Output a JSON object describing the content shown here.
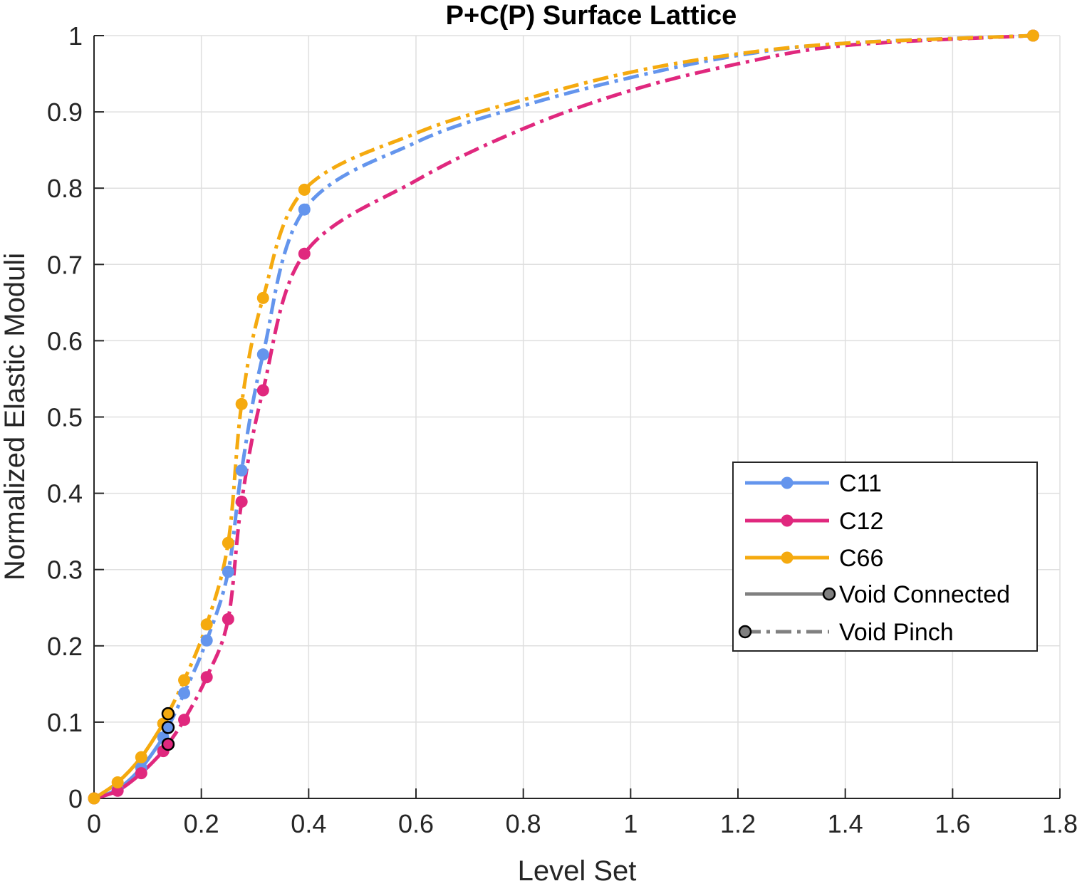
{
  "chart_data": {
    "type": "line",
    "title": "P+C(P) Surface Lattice",
    "xlabel": "Level Set",
    "ylabel": "Normalized Elastic Moduli",
    "xlim": [
      0,
      1.8
    ],
    "ylim": [
      0,
      1
    ],
    "x_ticks": [
      "0",
      "0.2",
      "0.4",
      "0.6",
      "0.8",
      "1",
      "1.2",
      "1.4",
      "1.6",
      "1.8"
    ],
    "y_ticks": [
      "0",
      "0.1",
      "0.2",
      "0.3",
      "0.4",
      "0.5",
      "0.6",
      "0.7",
      "0.8",
      "0.9",
      "1"
    ],
    "x_tick_values": [
      0,
      0.2,
      0.4,
      0.6,
      0.8,
      1.0,
      1.2,
      1.4,
      1.6,
      1.8
    ],
    "y_tick_values": [
      0,
      0.1,
      0.2,
      0.3,
      0.4,
      0.5,
      0.6,
      0.7,
      0.8,
      0.9,
      1.0
    ],
    "grid": true,
    "legend_position": "lower-right",
    "series": [
      {
        "name": "C11",
        "color": "#6495ED",
        "solid": [
          [
            0,
            0
          ],
          [
            0.044,
            0.012
          ],
          [
            0.088,
            0.04
          ],
          [
            0.129,
            0.08
          ],
          [
            0.138,
            0.093
          ]
        ],
        "dashed": [
          [
            0.138,
            0.093
          ],
          [
            0.168,
            0.138
          ],
          [
            0.21,
            0.207
          ],
          [
            0.25,
            0.297
          ],
          [
            0.275,
            0.43
          ],
          [
            0.315,
            0.582
          ],
          [
            0.392,
            0.772
          ],
          [
            0.6,
            0.86
          ],
          [
            0.8,
            0.908
          ],
          [
            1.0,
            0.945
          ],
          [
            1.2,
            0.974
          ],
          [
            1.4,
            0.99
          ],
          [
            1.75,
            1.0
          ]
        ],
        "markers": [
          [
            0,
            0
          ],
          [
            0.044,
            0.012
          ],
          [
            0.088,
            0.04
          ],
          [
            0.129,
            0.08
          ],
          [
            0.168,
            0.138
          ],
          [
            0.21,
            0.207
          ],
          [
            0.25,
            0.297
          ],
          [
            0.275,
            0.43
          ],
          [
            0.315,
            0.582
          ],
          [
            0.392,
            0.772
          ],
          [
            1.75,
            1.0
          ]
        ],
        "transition": [
          0.138,
          0.093
        ]
      },
      {
        "name": "C12",
        "color": "#E0287E",
        "solid": [
          [
            0,
            0
          ],
          [
            0.044,
            0.01
          ],
          [
            0.088,
            0.033
          ],
          [
            0.129,
            0.062
          ],
          [
            0.138,
            0.071
          ]
        ],
        "dashed": [
          [
            0.138,
            0.071
          ],
          [
            0.168,
            0.103
          ],
          [
            0.21,
            0.159
          ],
          [
            0.25,
            0.235
          ],
          [
            0.275,
            0.389
          ],
          [
            0.315,
            0.535
          ],
          [
            0.392,
            0.714
          ],
          [
            0.6,
            0.81
          ],
          [
            0.8,
            0.878
          ],
          [
            1.0,
            0.928
          ],
          [
            1.2,
            0.963
          ],
          [
            1.4,
            0.987
          ],
          [
            1.75,
            1.0
          ]
        ],
        "markers": [
          [
            0,
            0
          ],
          [
            0.044,
            0.01
          ],
          [
            0.088,
            0.033
          ],
          [
            0.129,
            0.062
          ],
          [
            0.168,
            0.103
          ],
          [
            0.21,
            0.159
          ],
          [
            0.25,
            0.235
          ],
          [
            0.275,
            0.389
          ],
          [
            0.315,
            0.535
          ],
          [
            0.392,
            0.714
          ],
          [
            1.75,
            1.0
          ]
        ],
        "transition": [
          0.138,
          0.071
        ]
      },
      {
        "name": "C66",
        "color": "#F5AA0F",
        "solid": [
          [
            0,
            0
          ],
          [
            0.044,
            0.021
          ],
          [
            0.088,
            0.054
          ],
          [
            0.129,
            0.098
          ],
          [
            0.138,
            0.111
          ]
        ],
        "dashed": [
          [
            0.138,
            0.111
          ],
          [
            0.168,
            0.155
          ],
          [
            0.21,
            0.228
          ],
          [
            0.25,
            0.335
          ],
          [
            0.275,
            0.517
          ],
          [
            0.315,
            0.656
          ],
          [
            0.392,
            0.798
          ],
          [
            0.6,
            0.872
          ],
          [
            0.8,
            0.916
          ],
          [
            1.0,
            0.952
          ],
          [
            1.2,
            0.976
          ],
          [
            1.4,
            0.99
          ],
          [
            1.75,
            1.0
          ]
        ],
        "markers": [
          [
            0,
            0
          ],
          [
            0.044,
            0.021
          ],
          [
            0.088,
            0.054
          ],
          [
            0.129,
            0.098
          ],
          [
            0.168,
            0.155
          ],
          [
            0.21,
            0.228
          ],
          [
            0.25,
            0.335
          ],
          [
            0.275,
            0.517
          ],
          [
            0.315,
            0.656
          ],
          [
            0.392,
            0.798
          ],
          [
            1.75,
            1.0
          ]
        ],
        "transition": [
          0.138,
          0.111
        ]
      }
    ],
    "legend": [
      {
        "label": "C11",
        "color": "#6495ED",
        "style": "solid-marker"
      },
      {
        "label": "C12",
        "color": "#E0287E",
        "style": "solid-marker"
      },
      {
        "label": "C66",
        "color": "#F5AA0F",
        "style": "solid-marker"
      },
      {
        "label": "Void Connected",
        "color": "#808080",
        "style": "solid-end-marker"
      },
      {
        "label": "Void Pinch",
        "color": "#808080",
        "style": "dashdot-start-marker"
      }
    ]
  }
}
